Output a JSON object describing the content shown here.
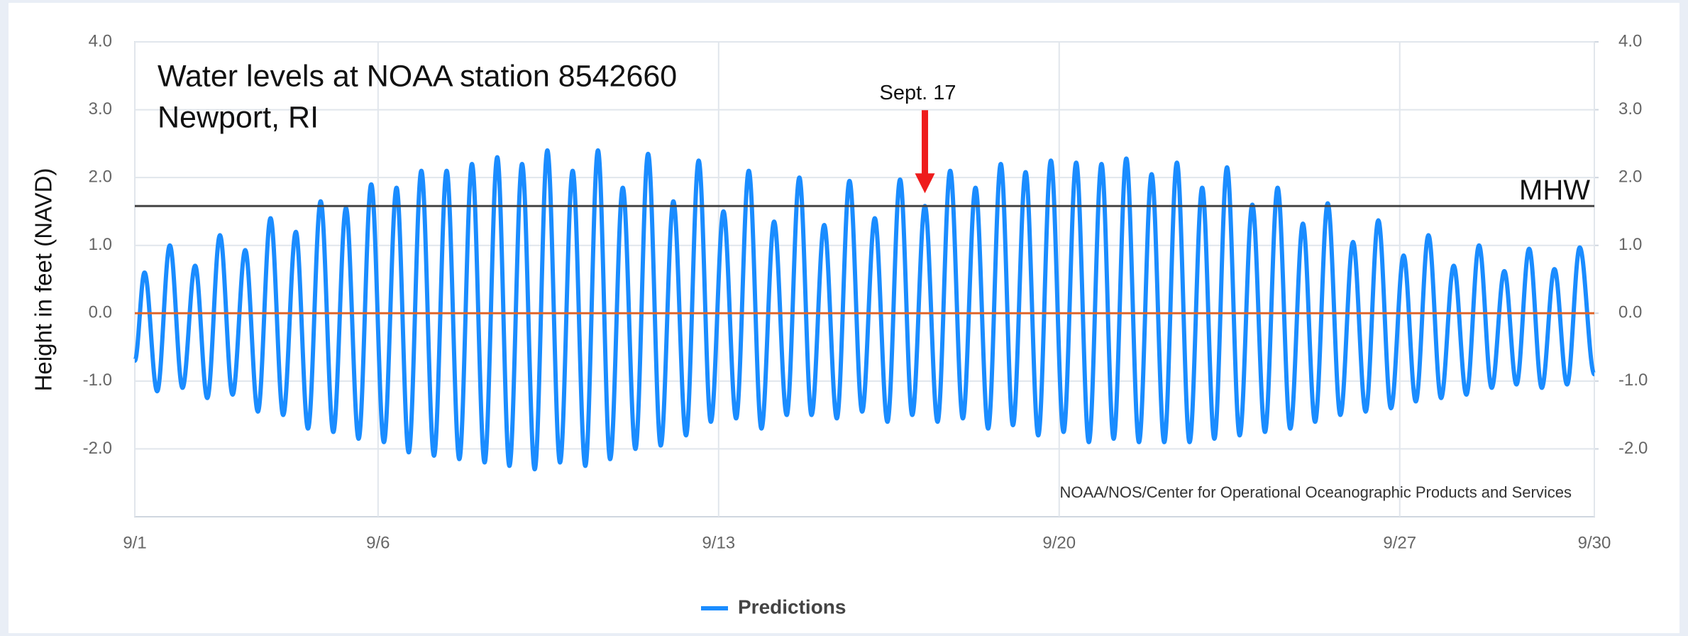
{
  "chart_data": {
    "type": "line",
    "title": "Water levels at NOAA station 8542660",
    "subtitle": "Newport, RI",
    "y_label": "Height in feet (NAVD)",
    "credit": "NOAA/NOS/Center for Operational Oceanographic Products and Services",
    "xlim": [
      1,
      31
    ],
    "xticks": [
      {
        "value": 1,
        "label": "9/1"
      },
      {
        "value": 6,
        "label": "9/6"
      },
      {
        "value": 13,
        "label": "9/13"
      },
      {
        "value": 20,
        "label": "9/20"
      },
      {
        "value": 27,
        "label": "9/27"
      },
      {
        "value": 31,
        "label": "9/30"
      }
    ],
    "ylim": [
      -3,
      4
    ],
    "yticks": [
      {
        "value": -2,
        "label": "-2.0"
      },
      {
        "value": -1,
        "label": "-1.0"
      },
      {
        "value": 0,
        "label": "0.0"
      },
      {
        "value": 1,
        "label": "1.0"
      },
      {
        "value": 2,
        "label": "2.0"
      },
      {
        "value": 3,
        "label": "3.0"
      },
      {
        "value": 4,
        "label": "4.0"
      }
    ],
    "y2lim": [
      -3,
      4
    ],
    "y2ticks": [
      {
        "value": -2,
        "label": "-2.0"
      },
      {
        "value": -1,
        "label": "-1.0"
      },
      {
        "value": 0,
        "label": "0.0"
      },
      {
        "value": 1,
        "label": "1.0"
      },
      {
        "value": 2,
        "label": "2.0"
      },
      {
        "value": 3,
        "label": "3.0"
      },
      {
        "value": 4,
        "label": "4.0"
      }
    ],
    "grid": true,
    "reference_lines": [
      {
        "label": "MHW",
        "value": 1.58,
        "color": "#444444"
      },
      {
        "value": 0,
        "color": "#e0662a"
      }
    ],
    "annotation": {
      "text": "Sept. 17",
      "x": 17.24,
      "y": 1.58,
      "color": "#ee1c1c"
    },
    "legend": "bottom",
    "series": [
      {
        "name": "Predictions",
        "color": "#1a8cff",
        "x": [
          1.0,
          1.2,
          1.46,
          1.72,
          1.98,
          2.24,
          2.49,
          2.75,
          3.01,
          3.27,
          3.53,
          3.79,
          4.05,
          4.31,
          4.56,
          4.82,
          5.08,
          5.34,
          5.6,
          5.86,
          6.12,
          6.38,
          6.63,
          6.89,
          7.15,
          7.41,
          7.67,
          7.93,
          8.19,
          8.45,
          8.7,
          8.96,
          9.22,
          9.48,
          9.74,
          10.0,
          10.26,
          10.52,
          10.77,
          11.03,
          11.29,
          11.55,
          11.81,
          12.07,
          12.33,
          12.59,
          12.84,
          13.1,
          13.36,
          13.62,
          13.88,
          14.14,
          14.4,
          14.66,
          14.91,
          15.17,
          15.43,
          15.69,
          15.95,
          16.21,
          16.47,
          16.73,
          16.98,
          17.24,
          17.5,
          17.76,
          18.02,
          18.28,
          18.54,
          18.8,
          19.05,
          19.31,
          19.57,
          19.83,
          20.09,
          20.35,
          20.61,
          20.87,
          21.12,
          21.38,
          21.64,
          21.9,
          22.16,
          22.42,
          22.68,
          22.94,
          23.19,
          23.45,
          23.71,
          23.97,
          24.23,
          24.49,
          24.75,
          25.01,
          25.26,
          25.52,
          25.78,
          26.04,
          26.3,
          26.56,
          26.82,
          27.08,
          27.33,
          27.59,
          27.85,
          28.11,
          28.37,
          28.63,
          28.89,
          29.15,
          29.4,
          29.66,
          29.92,
          30.18,
          30.44,
          30.7,
          31.0
        ],
        "values": [
          -0.7,
          0.6,
          -1.15,
          1.0,
          -1.1,
          0.7,
          -1.25,
          1.15,
          -1.2,
          0.93,
          -1.45,
          1.4,
          -1.5,
          1.2,
          -1.7,
          1.65,
          -1.75,
          1.55,
          -1.85,
          1.9,
          -1.9,
          1.85,
          -2.05,
          2.1,
          -2.1,
          2.1,
          -2.15,
          2.2,
          -2.2,
          2.3,
          -2.25,
          2.2,
          -2.3,
          2.4,
          -2.2,
          2.1,
          -2.25,
          2.4,
          -2.15,
          1.85,
          -2.0,
          2.35,
          -1.95,
          1.65,
          -1.8,
          2.25,
          -1.6,
          1.5,
          -1.55,
          2.1,
          -1.7,
          1.35,
          -1.5,
          2.0,
          -1.5,
          1.3,
          -1.55,
          1.95,
          -1.45,
          1.4,
          -1.6,
          1.97,
          -1.5,
          1.58,
          -1.6,
          2.1,
          -1.55,
          1.85,
          -1.7,
          2.2,
          -1.65,
          2.08,
          -1.8,
          2.25,
          -1.75,
          2.22,
          -1.9,
          2.2,
          -1.85,
          2.28,
          -1.9,
          2.05,
          -1.9,
          2.22,
          -1.9,
          1.85,
          -1.85,
          2.15,
          -1.8,
          1.6,
          -1.75,
          1.85,
          -1.7,
          1.32,
          -1.6,
          1.62,
          -1.5,
          1.05,
          -1.45,
          1.37,
          -1.4,
          0.85,
          -1.3,
          1.15,
          -1.25,
          0.7,
          -1.2,
          1.0,
          -1.1,
          0.62,
          -1.05,
          0.95,
          -1.1,
          0.65,
          -1.05,
          0.97,
          -0.9
        ]
      }
    ]
  }
}
